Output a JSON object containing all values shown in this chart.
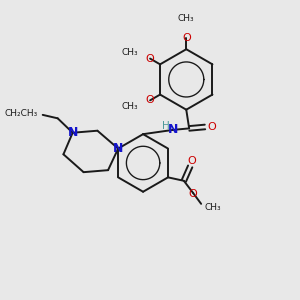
{
  "background_color": "#e8e8e8",
  "bond_color": "#1a1a1a",
  "nitrogen_color": "#1414cc",
  "oxygen_color": "#cc0000",
  "h_color": "#4e9999",
  "lw": 1.4,
  "fig_width": 3.0,
  "fig_height": 3.0,
  "dpi": 100,
  "xlim": [
    0,
    10
  ],
  "ylim": [
    0,
    10
  ]
}
